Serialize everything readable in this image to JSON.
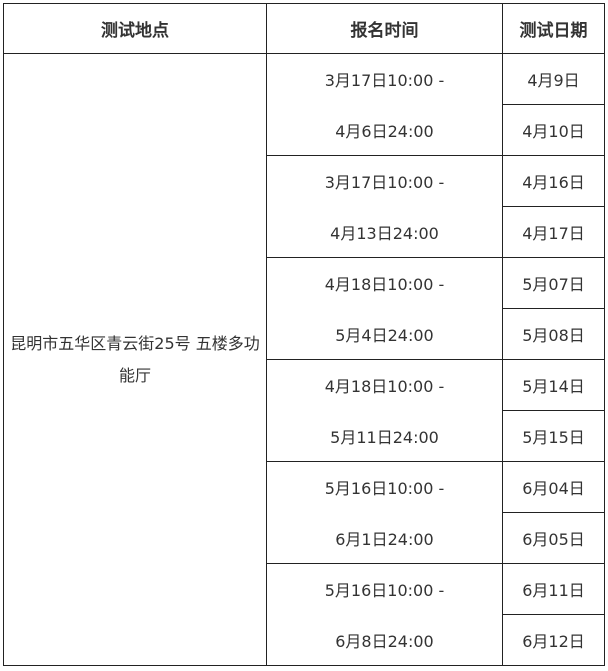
{
  "headers": [
    "测试地点",
    "报名时间",
    "测试日期"
  ],
  "location": "昆明市五华区青云街25号 五楼多功能厅",
  "groups": [
    {
      "reg_start": "3月17日10:00 -",
      "reg_end": "4月6日24:00",
      "dates": [
        "4月9日",
        "4月10日"
      ]
    },
    {
      "reg_start": "3月17日10:00 -",
      "reg_end": "4月13日24:00",
      "dates": [
        "4月16日",
        "4月17日"
      ]
    },
    {
      "reg_start": "4月18日10:00 -",
      "reg_end": "5月4日24:00",
      "dates": [
        "5月07日",
        "5月08日"
      ]
    },
    {
      "reg_start": "4月18日10:00 -",
      "reg_end": "5月11日24:00",
      "dates": [
        "5月14日",
        "5月15日"
      ]
    },
    {
      "reg_start": "5月16日10:00 -",
      "reg_end": "6月1日24:00",
      "dates": [
        "6月04日",
        "6月05日"
      ]
    },
    {
      "reg_start": "5月16日10:00 -",
      "reg_end": "6月8日24:00",
      "dates": [
        "6月11日",
        "6月12日"
      ]
    }
  ]
}
